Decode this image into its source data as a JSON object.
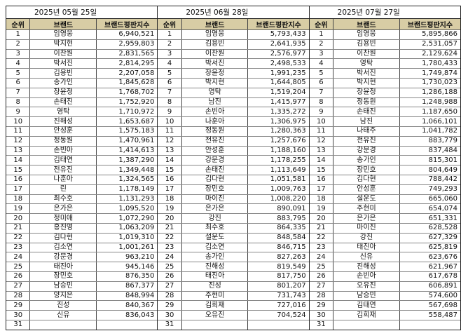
{
  "headers": {
    "rank": "순위",
    "brand": "브랜드",
    "score": "브랜드평판지수"
  },
  "panels": [
    {
      "date": "2025년 05월 25일",
      "rows": [
        [
          "1",
          "임영웅",
          "6,940,521"
        ],
        [
          "2",
          "박지현",
          "2,959,803"
        ],
        [
          "3",
          "이찬원",
          "2,831,565"
        ],
        [
          "4",
          "박서진",
          "2,814,295"
        ],
        [
          "5",
          "김용빈",
          "2,207,058"
        ],
        [
          "6",
          "송가인",
          "1,845,628"
        ],
        [
          "7",
          "장윤정",
          "1,768,702"
        ],
        [
          "8",
          "손태진",
          "1,752,920"
        ],
        [
          "9",
          "영탁",
          "1,710,972"
        ],
        [
          "10",
          "진해성",
          "1,653,687"
        ],
        [
          "11",
          "안성훈",
          "1,575,183"
        ],
        [
          "12",
          "정동원",
          "1,470,961"
        ],
        [
          "13",
          "손빈아",
          "1,414,613"
        ],
        [
          "14",
          "김태연",
          "1,387,290"
        ],
        [
          "15",
          "전유진",
          "1,349,448"
        ],
        [
          "16",
          "나훈아",
          "1,324,565"
        ],
        [
          "17",
          "린",
          "1,178,149"
        ],
        [
          "18",
          "최수호",
          "1,131,293"
        ],
        [
          "19",
          "은가은",
          "1,095,520"
        ],
        [
          "20",
          "정미애",
          "1,072,290"
        ],
        [
          "21",
          "홍진영",
          "1,063,209"
        ],
        [
          "22",
          "김다현",
          "1,019,310"
        ],
        [
          "23",
          "김소연",
          "1,001,261"
        ],
        [
          "24",
          "강문경",
          "963,210"
        ],
        [
          "25",
          "태진아",
          "945,146"
        ],
        [
          "26",
          "장민호",
          "876,350"
        ],
        [
          "27",
          "남승민",
          "867,377"
        ],
        [
          "28",
          "양지은",
          "848,994"
        ],
        [
          "29",
          "진성",
          "840,367"
        ],
        [
          "30",
          "신유",
          "836,043"
        ],
        [
          "31",
          "",
          ""
        ]
      ]
    },
    {
      "date": "2025년 06월 28일",
      "rows": [
        [
          "1",
          "임영웅",
          "5,793,433"
        ],
        [
          "2",
          "김용빈",
          "2,641,935"
        ],
        [
          "3",
          "이찬원",
          "2,576,977"
        ],
        [
          "4",
          "박서진",
          "2,498,533"
        ],
        [
          "5",
          "장윤정",
          "1,991,235"
        ],
        [
          "6",
          "박지현",
          "1,644,805"
        ],
        [
          "7",
          "영탁",
          "1,519,204"
        ],
        [
          "8",
          "남진",
          "1,415,977"
        ],
        [
          "9",
          "손빈아",
          "1,335,272"
        ],
        [
          "10",
          "나훈아",
          "1,306,975"
        ],
        [
          "11",
          "정동원",
          "1,280,363"
        ],
        [
          "12",
          "전유진",
          "1,257,676"
        ],
        [
          "13",
          "안성훈",
          "1,188,160"
        ],
        [
          "14",
          "강문경",
          "1,178,255"
        ],
        [
          "15",
          "손태진",
          "1,113,649"
        ],
        [
          "16",
          "김다현",
          "1,051,581"
        ],
        [
          "17",
          "장민호",
          "1,009,763"
        ],
        [
          "18",
          "마이진",
          "1,008,220"
        ],
        [
          "19",
          "은가은",
          "890,091"
        ],
        [
          "20",
          "강진",
          "883,795"
        ],
        [
          "21",
          "최수호",
          "864,335"
        ],
        [
          "22",
          "설운도",
          "848,584"
        ],
        [
          "23",
          "김소연",
          "846,715"
        ],
        [
          "24",
          "송가인",
          "827,263"
        ],
        [
          "25",
          "진해성",
          "819,549"
        ],
        [
          "26",
          "태진아",
          "817,750"
        ],
        [
          "27",
          "진성",
          "801,207"
        ],
        [
          "28",
          "주현미",
          "731,743"
        ],
        [
          "29",
          "김희재",
          "727,016"
        ],
        [
          "30",
          "오유진",
          "704,524"
        ],
        [
          "31",
          "",
          ""
        ]
      ]
    },
    {
      "date": "2025년 07월 27일",
      "rows": [
        [
          "1",
          "임영웅",
          "5,895,866"
        ],
        [
          "2",
          "김용빈",
          "2,531,057"
        ],
        [
          "3",
          "이찬원",
          "2,129,624"
        ],
        [
          "4",
          "영탁",
          "1,780,433"
        ],
        [
          "5",
          "박서진",
          "1,749,874"
        ],
        [
          "6",
          "박지현",
          "1,730,023"
        ],
        [
          "7",
          "장윤정",
          "1,286,188"
        ],
        [
          "8",
          "정동원",
          "1,248,988"
        ],
        [
          "9",
          "손태진",
          "1,187,650"
        ],
        [
          "10",
          "남진",
          "1,066,101"
        ],
        [
          "11",
          "나태주",
          "1,041,782"
        ],
        [
          "12",
          "전유진",
          "883,779"
        ],
        [
          "13",
          "강문경",
          "837,484"
        ],
        [
          "14",
          "송가인",
          "815,301"
        ],
        [
          "15",
          "장민호",
          "804,649"
        ],
        [
          "16",
          "김다현",
          "788,442"
        ],
        [
          "17",
          "안성훈",
          "749,293"
        ],
        [
          "18",
          "설운도",
          "665,060"
        ],
        [
          "19",
          "주현미",
          "654,074"
        ],
        [
          "20",
          "은가은",
          "651,331"
        ],
        [
          "21",
          "마이진",
          "628,528"
        ],
        [
          "22",
          "강진",
          "627,329"
        ],
        [
          "23",
          "태진아",
          "625,819"
        ],
        [
          "24",
          "신유",
          "623,676"
        ],
        [
          "25",
          "진해성",
          "621,967"
        ],
        [
          "26",
          "손빈아",
          "617,678"
        ],
        [
          "27",
          "오유진",
          "606,891"
        ],
        [
          "28",
          "남승민",
          "574,600"
        ],
        [
          "29",
          "김태연",
          "567,698"
        ],
        [
          "30",
          "김희재",
          "558,487"
        ],
        [
          "31",
          "",
          ""
        ]
      ]
    }
  ]
}
